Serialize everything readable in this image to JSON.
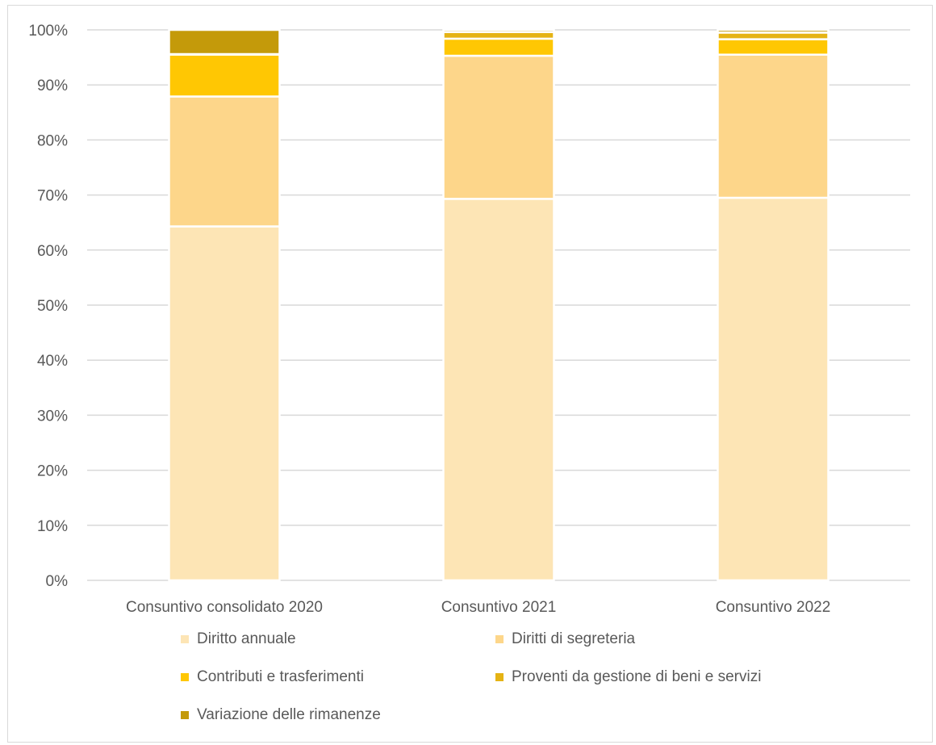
{
  "chart_data": {
    "type": "bar",
    "stacked": true,
    "percent_scale": true,
    "categories": [
      "Consuntivo consolidato 2020",
      "Consuntivo 2021",
      "Consuntivo 2022"
    ],
    "series": [
      {
        "name": "Diritto annuale",
        "color": "#fde5b5",
        "values": [
          64.3,
          69.3,
          69.5
        ]
      },
      {
        "name": "Diritti di segreteria",
        "color": "#fdd68a",
        "values": [
          23.6,
          26.0,
          26.0
        ]
      },
      {
        "name": "Contributi e trasferimenti",
        "color": "#ffc703",
        "values": [
          7.6,
          3.1,
          2.8
        ]
      },
      {
        "name": "Proventi da gestione di beni e servizi",
        "color": "#e5b314",
        "values": [
          0.1,
          1.2,
          1.2
        ]
      },
      {
        "name": "Variazione delle rimanenze",
        "color": "#c49a0a",
        "values": [
          4.4,
          0.4,
          0.5
        ]
      }
    ],
    "title": "",
    "xlabel": "",
    "ylabel": "",
    "ylim": [
      0,
      100
    ],
    "yticks": [
      "0%",
      "10%",
      "20%",
      "30%",
      "40%",
      "50%",
      "60%",
      "70%",
      "80%",
      "90%",
      "100%"
    ],
    "grid": true,
    "legend_position": "bottom"
  }
}
